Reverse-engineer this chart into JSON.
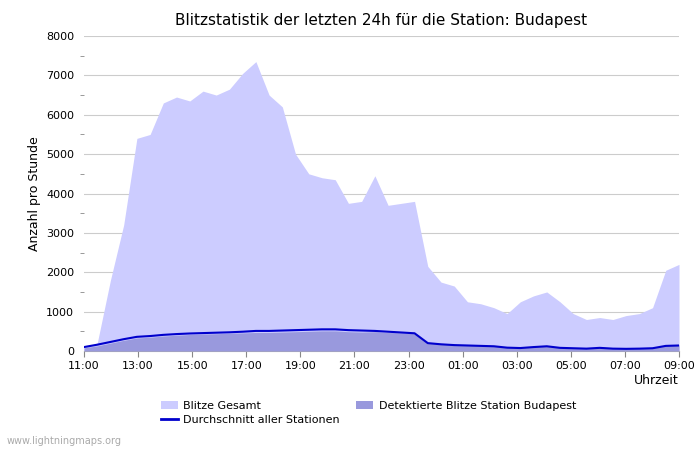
{
  "title": "Blitzstatistik der letzten 24h für die Station: Budapest",
  "xlabel": "Uhrzeit",
  "ylabel": "Anzahl pro Stunde",
  "watermark": "www.lightningmaps.org",
  "xlabels": [
    "11:00",
    "13:00",
    "15:00",
    "17:00",
    "19:00",
    "21:00",
    "23:00",
    "01:00",
    "03:00",
    "05:00",
    "07:00",
    "09:00"
  ],
  "ylim": [
    0,
    8000
  ],
  "yticks_major": [
    0,
    1000,
    2000,
    3000,
    4000,
    5000,
    6000,
    7000,
    8000
  ],
  "bg_color": "#ffffff",
  "grid_color": "#cccccc",
  "area_gesamt_color": "#ccccff",
  "area_detected_color": "#9999dd",
  "line_color": "#0000cc",
  "gesamt_values": [
    100,
    200,
    1800,
    3200,
    5400,
    5500,
    6300,
    6450,
    6350,
    6600,
    6500,
    6650,
    7050,
    7350,
    6500,
    6200,
    5000,
    4500,
    4400,
    4350,
    3750,
    3800,
    4450,
    3700,
    3750,
    3800,
    2150,
    1750,
    1650,
    1250,
    1200,
    1100,
    950,
    1250,
    1400,
    1500,
    1250,
    950,
    800,
    850,
    800,
    900,
    950,
    1100,
    2050,
    2200
  ],
  "detected_values": [
    80,
    130,
    200,
    270,
    330,
    350,
    380,
    400,
    420,
    430,
    440,
    450,
    460,
    470,
    470,
    480,
    490,
    500,
    510,
    510,
    490,
    480,
    490,
    470,
    460,
    440,
    210,
    180,
    160,
    150,
    140,
    130,
    90,
    80,
    110,
    130,
    90,
    80,
    70,
    100,
    80,
    70,
    80,
    90,
    150,
    160
  ],
  "avg_line_values": [
    100,
    160,
    230,
    300,
    360,
    380,
    410,
    430,
    445,
    455,
    465,
    475,
    490,
    510,
    510,
    520,
    530,
    540,
    550,
    550,
    530,
    520,
    510,
    490,
    470,
    450,
    200,
    170,
    150,
    140,
    130,
    120,
    85,
    75,
    100,
    120,
    80,
    70,
    60,
    80,
    60,
    55,
    60,
    70,
    130,
    140
  ],
  "n_points": 46,
  "n_xticks": 12,
  "legend_gesamt_label": "Blitze Gesamt",
  "legend_detected_label": "Detektierte Blitze Station Budapest",
  "legend_avg_label": "Durchschnitt aller Stationen"
}
